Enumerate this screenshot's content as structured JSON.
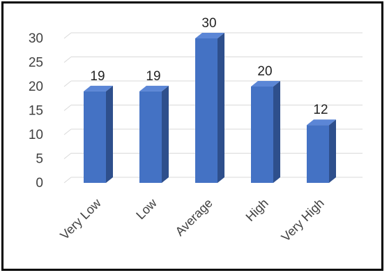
{
  "chart_data": {
    "type": "bar",
    "style": "3d-column",
    "categories": [
      "Very Low",
      "Low",
      "Average",
      "High",
      "Very High"
    ],
    "values": [
      19,
      19,
      30,
      20,
      12
    ],
    "data_labels": [
      "19",
      "19",
      "30",
      "20",
      "12"
    ],
    "title": "",
    "xlabel": "",
    "ylabel": "",
    "ylim": [
      0,
      30
    ],
    "yticks": [
      "0",
      "5",
      "10",
      "15",
      "20",
      "25",
      "30"
    ],
    "grid": true,
    "legend": "none",
    "colors": {
      "bar_front": "#4472c4",
      "bar_side": "#2e4f8c",
      "bar_top": "#5b86d6",
      "grid": "#d9d9d9",
      "frame": "#000000"
    }
  }
}
